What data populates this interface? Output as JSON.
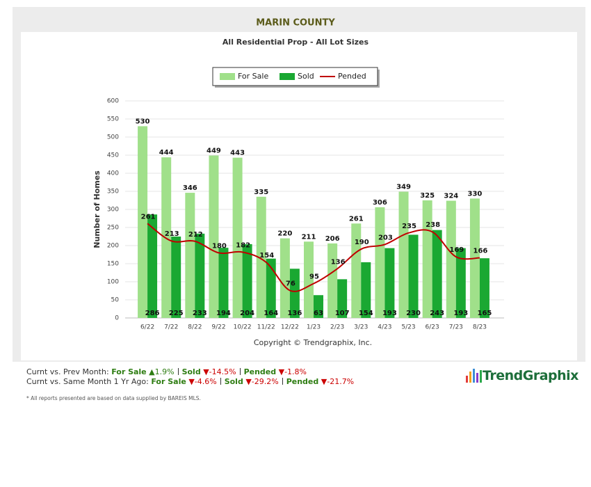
{
  "chart_data": {
    "type": "bar",
    "title": "MARIN COUNTY",
    "subtitle": "All Residential Prop - All Lot Sizes",
    "y_label": "Number of Homes",
    "credit": "Copyright © Trendgraphix, Inc.",
    "categories": [
      "6/22",
      "7/22",
      "8/22",
      "9/22",
      "10/22",
      "11/22",
      "12/22",
      "1/23",
      "2/23",
      "3/23",
      "4/23",
      "5/23",
      "6/23",
      "7/23",
      "8/23"
    ],
    "series": [
      {
        "name": "For Sale",
        "color": "#a0e08a",
        "values": [
          530,
          444,
          346,
          449,
          443,
          335,
          220,
          211,
          206,
          261,
          306,
          349,
          325,
          324,
          330
        ]
      },
      {
        "name": "Sold",
        "color": "#1aa832",
        "values": [
          286,
          225,
          233,
          194,
          204,
          164,
          136,
          63,
          107,
          154,
          193,
          230,
          243,
          193,
          165
        ]
      },
      {
        "name": "Pended",
        "color": "#c00000",
        "type": "line",
        "values": [
          261,
          213,
          212,
          180,
          182,
          154,
          76,
          95,
          136,
          190,
          203,
          235,
          238,
          169,
          166
        ]
      }
    ],
    "ylim": [
      0,
      600
    ],
    "yticks": [
      0,
      50,
      100,
      150,
      200,
      250,
      300,
      350,
      400,
      450,
      500,
      550,
      600
    ],
    "grid": true
  },
  "summary": [
    {
      "label": "Curnt vs. Prev Month:",
      "items": [
        {
          "name": "For Sale",
          "change": "▲1.9%",
          "color": "#2e7d12"
        },
        {
          "name": "Sold",
          "change": "▼-14.5%",
          "color": "#cc0000"
        },
        {
          "name": "Pended",
          "change": "▼-1.8%",
          "color": "#cc0000"
        }
      ]
    },
    {
      "label": "Curnt vs. Same Month 1 Yr Ago:",
      "items": [
        {
          "name": "For Sale",
          "change": "▼-4.6%",
          "color": "#cc0000"
        },
        {
          "name": "Sold",
          "change": "▼-29.2%",
          "color": "#cc0000"
        },
        {
          "name": "Pended",
          "change": "▼-21.7%",
          "color": "#cc0000"
        }
      ]
    }
  ],
  "note": "* All reports presented are based on data supplied by BAREIS MLS.",
  "logo": "TrendGraphix"
}
